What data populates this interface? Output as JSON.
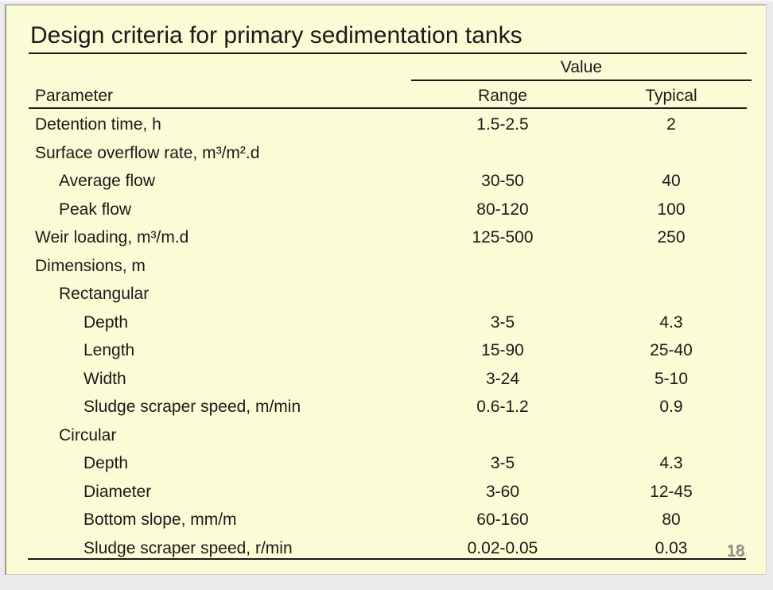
{
  "slide": {
    "title": "Design criteria for primary sedimentation tanks",
    "page_number": "18",
    "colors": {
      "slide_background": "#fbfbd6",
      "text": "#1a1a1a",
      "rule_lines": "#1a1a1a",
      "page_number": "#97978f",
      "outer_background": "#ebebeb"
    }
  },
  "table": {
    "value_group_header": "Value",
    "columns": {
      "parameter": "Parameter",
      "range": "Range",
      "typical": "Typical"
    },
    "rows": [
      {
        "parameter": "Detention time, h",
        "indent": 0,
        "range": "1.5-2.5",
        "typical": "2"
      },
      {
        "parameter": "Surface overflow rate, m³/m².d",
        "indent": 0,
        "range": "",
        "typical": ""
      },
      {
        "parameter": "Average flow",
        "indent": 1,
        "range": "30-50",
        "typical": "40"
      },
      {
        "parameter": "Peak flow",
        "indent": 1,
        "range": "80-120",
        "typical": "100"
      },
      {
        "parameter": "Weir loading, m³/m.d",
        "indent": 0,
        "range": "125-500",
        "typical": "250"
      },
      {
        "parameter": "Dimensions, m",
        "indent": 0,
        "range": "",
        "typical": ""
      },
      {
        "parameter": "Rectangular",
        "indent": 1,
        "range": "",
        "typical": ""
      },
      {
        "parameter": "Depth",
        "indent": 2,
        "range": "3-5",
        "typical": "4.3"
      },
      {
        "parameter": "Length",
        "indent": 2,
        "range": "15-90",
        "typical": "25-40"
      },
      {
        "parameter": "Width",
        "indent": 2,
        "range": "3-24",
        "typical": "5-10"
      },
      {
        "parameter": "Sludge scraper speed, m/min",
        "indent": 2,
        "range": "0.6-1.2",
        "typical": "0.9"
      },
      {
        "parameter": "Circular",
        "indent": 1,
        "range": "",
        "typical": ""
      },
      {
        "parameter": "Depth",
        "indent": 2,
        "range": "3-5",
        "typical": "4.3"
      },
      {
        "parameter": "Diameter",
        "indent": 2,
        "range": "3-60",
        "typical": "12-45"
      },
      {
        "parameter": "Bottom slope, mm/m",
        "indent": 2,
        "range": "60-160",
        "typical": "80"
      },
      {
        "parameter": "Sludge scraper speed, r/min",
        "indent": 2,
        "range": "0.02-0.05",
        "typical": "0.03"
      }
    ]
  }
}
